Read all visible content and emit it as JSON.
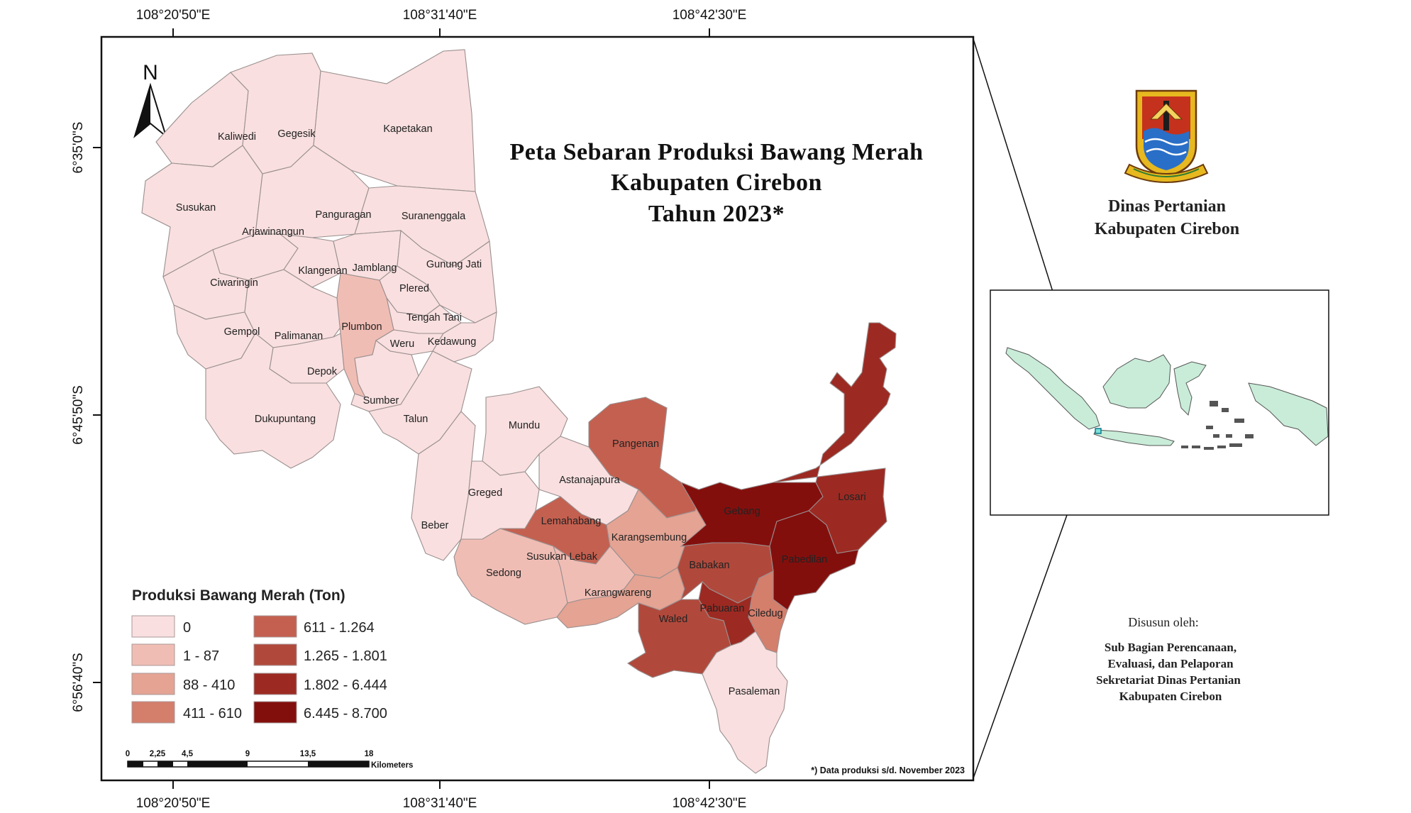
{
  "title": {
    "line1": "Peta Sebaran Produksi Bawang Merah",
    "line2": "Kabupaten Cirebon",
    "line3": "Tahun 2023*"
  },
  "north_arrow": "N",
  "coords": {
    "top": [
      "108°20'50\"E",
      "108°31'40\"E",
      "108°42'30\"E"
    ],
    "bottom": [
      "108°20'50\"E",
      "108°31'40\"E",
      "108°42'30\"E"
    ],
    "left": [
      "6°35'0\"S",
      "6°45'50\"S",
      "6°56'40\"S"
    ]
  },
  "colors": {
    "c0": "#f9dfdf",
    "c1": "#f0bdb4",
    "c2": "#e4a393",
    "c3": "#d47e6c",
    "c4": "#c46050",
    "c5": "#b0493c",
    "c6": "#9c2a22",
    "c7": "#830f0d"
  },
  "districts": {
    "kaliwedi": "Kaliwedi",
    "gegesik": "Gegesik",
    "kapetakan": "Kapetakan",
    "susukan": "Susukan",
    "panguragan": "Panguragan",
    "suranenggala": "Suranenggala",
    "arjawinangun": "Arjawinangun",
    "klangenan": "Klangenan",
    "jamblang": "Jamblang",
    "gunungjati": "Gunung Jati",
    "ciwaringin": "Ciwaringin",
    "plered": "Plered",
    "tengahtani": "Tengah Tani",
    "plumbon": "Plumbon",
    "gempol": "Gempol",
    "palimanan": "Palimanan",
    "weru": "Weru",
    "kedawung": "Kedawung",
    "depok": "Depok",
    "sumber": "Sumber",
    "dukupuntang": "Dukupuntang",
    "talun": "Talun",
    "mundu": "Mundu",
    "pangenan": "Pangenan",
    "astanajapura": "Astanajapura",
    "greged": "Greged",
    "gebang": "Gebang",
    "losari": "Losari",
    "lemahabang": "Lemahabang",
    "beber": "Beber",
    "karangsembung": "Karangsembung",
    "susukanlebak": "Susukan Lebak",
    "sedong": "Sedong",
    "babakan": "Babakan",
    "pabedilan": "Pabedilan",
    "karangwareng": "Karangwareng",
    "pabuaran": "Pabuaran",
    "ciledug": "Ciledug",
    "waled": "Waled",
    "pasaleman": "Pasaleman"
  },
  "legend": {
    "title": "Produksi Bawang Merah (Ton)",
    "items": [
      {
        "label": "0",
        "color": "#f9dfdf"
      },
      {
        "label": "1 - 87",
        "color": "#f0bdb4"
      },
      {
        "label": "88 - 410",
        "color": "#e4a393"
      },
      {
        "label": "411 - 610",
        "color": "#d47e6c"
      },
      {
        "label": "611 - 1.264",
        "color": "#c46050"
      },
      {
        "label": "1.265 - 1.801",
        "color": "#b0493c"
      },
      {
        "label": "1.802 - 6.444",
        "color": "#9c2a22"
      },
      {
        "label": "6.445 - 8.700",
        "color": "#830f0d"
      }
    ]
  },
  "scalebar": {
    "ticks": [
      "0",
      "2,25",
      "4,5",
      "9",
      "13,5",
      "18"
    ],
    "unit": "Kilometers"
  },
  "footnote": "*) Data produksi s/d. November 2023",
  "organization": {
    "line1": "Dinas Pertanian",
    "line2": "Kabupaten Cirebon"
  },
  "credits": {
    "label": "Disusun oleh:",
    "lines": [
      "Sub Bagian Perencanaan,",
      "Evaluasi, dan Pelaporan",
      "Sekretariat Dinas Pertanian",
      "Kabupaten Cirebon"
    ]
  }
}
